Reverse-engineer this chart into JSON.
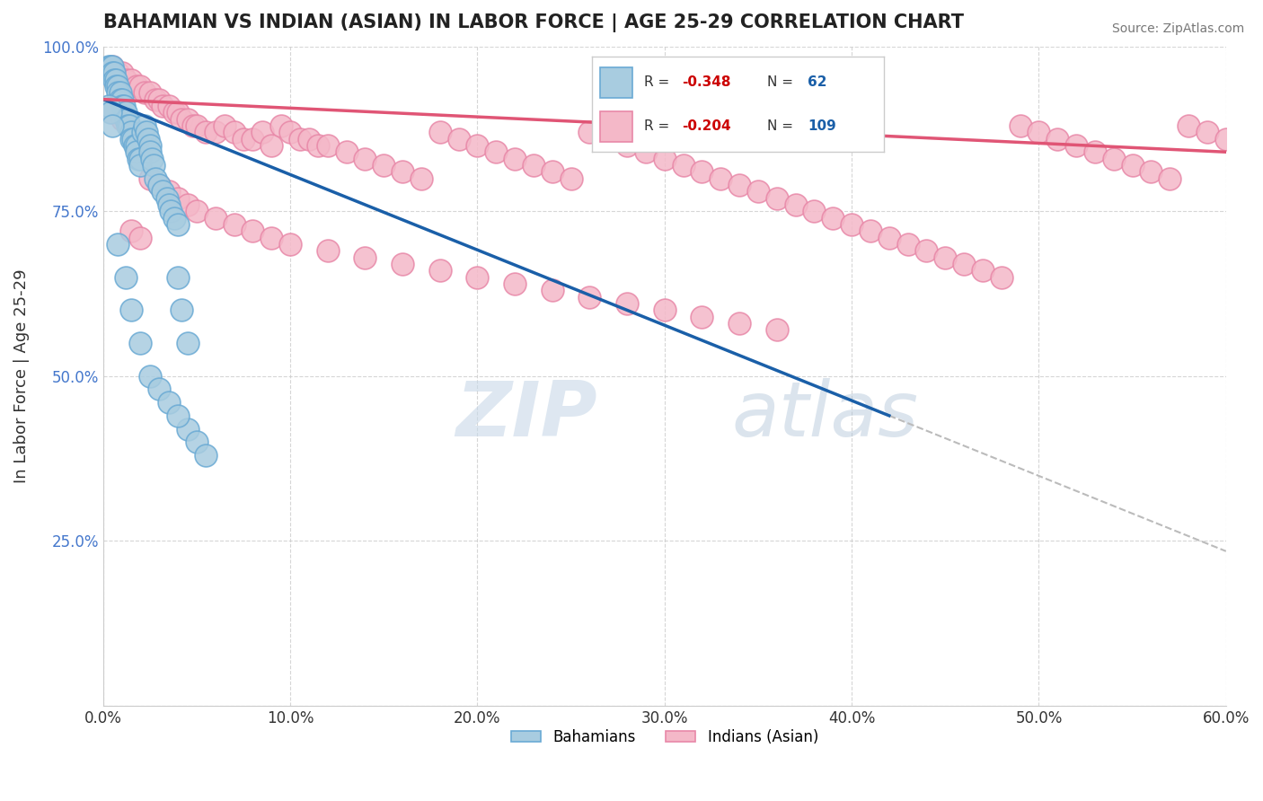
{
  "title": "BAHAMIAN VS INDIAN (ASIAN) IN LABOR FORCE | AGE 25-29 CORRELATION CHART",
  "source": "Source: ZipAtlas.com",
  "xlabel": "",
  "ylabel": "In Labor Force | Age 25-29",
  "xlim": [
    0.0,
    0.6
  ],
  "ylim": [
    0.0,
    1.0
  ],
  "xticks": [
    0.0,
    0.1,
    0.2,
    0.3,
    0.4,
    0.5,
    0.6
  ],
  "xticklabels": [
    "0.0%",
    "10.0%",
    "20.0%",
    "30.0%",
    "40.0%",
    "50.0%",
    "60.0%"
  ],
  "yticks": [
    0.0,
    0.25,
    0.5,
    0.75,
    1.0
  ],
  "yticklabels": [
    "",
    "25.0%",
    "50.0%",
    "75.0%",
    "100.0%"
  ],
  "bahamian_color": "#a8cce0",
  "indian_color": "#f4b8c8",
  "bahamian_edge": "#6aaad4",
  "indian_edge": "#e888a8",
  "trendline_blue": "#1a5fa8",
  "trendline_pink": "#e05575",
  "trendline_dash": "#bbbbbb",
  "R_blue": -0.348,
  "N_blue": 62,
  "R_pink": -0.204,
  "N_pink": 109,
  "watermark_zip": "ZIP",
  "watermark_atlas": "atlas",
  "legend_labels": [
    "Bahamians",
    "Indians (Asian)"
  ],
  "blue_scatter_x": [
    0.003,
    0.004,
    0.005,
    0.005,
    0.006,
    0.006,
    0.007,
    0.007,
    0.008,
    0.008,
    0.009,
    0.009,
    0.01,
    0.01,
    0.011,
    0.012,
    0.012,
    0.013,
    0.013,
    0.014,
    0.015,
    0.015,
    0.016,
    0.017,
    0.018,
    0.018,
    0.019,
    0.02,
    0.02,
    0.021,
    0.022,
    0.023,
    0.024,
    0.025,
    0.025,
    0.026,
    0.027,
    0.028,
    0.03,
    0.032,
    0.034,
    0.035,
    0.036,
    0.038,
    0.04,
    0.04,
    0.042,
    0.045,
    0.045,
    0.05,
    0.055,
    0.003,
    0.004,
    0.005,
    0.008,
    0.012,
    0.015,
    0.02,
    0.025,
    0.03,
    0.035,
    0.04
  ],
  "blue_scatter_y": [
    0.97,
    0.97,
    0.97,
    0.96,
    0.96,
    0.95,
    0.95,
    0.94,
    0.94,
    0.93,
    0.93,
    0.92,
    0.92,
    0.91,
    0.91,
    0.9,
    0.89,
    0.89,
    0.88,
    0.88,
    0.87,
    0.86,
    0.86,
    0.85,
    0.85,
    0.84,
    0.83,
    0.83,
    0.82,
    0.87,
    0.88,
    0.87,
    0.86,
    0.85,
    0.84,
    0.83,
    0.82,
    0.8,
    0.79,
    0.78,
    0.77,
    0.76,
    0.75,
    0.74,
    0.73,
    0.65,
    0.6,
    0.55,
    0.42,
    0.4,
    0.38,
    0.91,
    0.9,
    0.88,
    0.7,
    0.65,
    0.6,
    0.55,
    0.5,
    0.48,
    0.46,
    0.44
  ],
  "pink_scatter_x": [
    0.005,
    0.008,
    0.01,
    0.012,
    0.015,
    0.018,
    0.02,
    0.022,
    0.025,
    0.028,
    0.03,
    0.032,
    0.035,
    0.038,
    0.04,
    0.042,
    0.045,
    0.048,
    0.05,
    0.055,
    0.06,
    0.065,
    0.07,
    0.075,
    0.08,
    0.085,
    0.09,
    0.095,
    0.1,
    0.105,
    0.11,
    0.115,
    0.12,
    0.13,
    0.14,
    0.15,
    0.16,
    0.17,
    0.18,
    0.19,
    0.2,
    0.21,
    0.22,
    0.23,
    0.24,
    0.25,
    0.26,
    0.27,
    0.28,
    0.29,
    0.3,
    0.31,
    0.32,
    0.33,
    0.34,
    0.35,
    0.36,
    0.37,
    0.38,
    0.39,
    0.4,
    0.41,
    0.42,
    0.43,
    0.44,
    0.45,
    0.46,
    0.47,
    0.48,
    0.49,
    0.5,
    0.51,
    0.52,
    0.53,
    0.54,
    0.55,
    0.56,
    0.57,
    0.58,
    0.59,
    0.6,
    0.005,
    0.01,
    0.015,
    0.02,
    0.025,
    0.03,
    0.035,
    0.04,
    0.045,
    0.05,
    0.06,
    0.07,
    0.08,
    0.09,
    0.1,
    0.12,
    0.14,
    0.16,
    0.18,
    0.2,
    0.22,
    0.24,
    0.26,
    0.28,
    0.3,
    0.32,
    0.34,
    0.36
  ],
  "pink_scatter_y": [
    0.97,
    0.96,
    0.96,
    0.95,
    0.95,
    0.94,
    0.94,
    0.93,
    0.93,
    0.92,
    0.92,
    0.91,
    0.91,
    0.9,
    0.9,
    0.89,
    0.89,
    0.88,
    0.88,
    0.87,
    0.87,
    0.88,
    0.87,
    0.86,
    0.86,
    0.87,
    0.85,
    0.88,
    0.87,
    0.86,
    0.86,
    0.85,
    0.85,
    0.84,
    0.83,
    0.82,
    0.81,
    0.8,
    0.87,
    0.86,
    0.85,
    0.84,
    0.83,
    0.82,
    0.81,
    0.8,
    0.87,
    0.86,
    0.85,
    0.84,
    0.83,
    0.82,
    0.81,
    0.8,
    0.79,
    0.78,
    0.77,
    0.76,
    0.75,
    0.74,
    0.73,
    0.72,
    0.71,
    0.7,
    0.69,
    0.68,
    0.67,
    0.66,
    0.65,
    0.88,
    0.87,
    0.86,
    0.85,
    0.84,
    0.83,
    0.82,
    0.81,
    0.8,
    0.88,
    0.87,
    0.86,
    0.9,
    0.89,
    0.72,
    0.71,
    0.8,
    0.79,
    0.78,
    0.77,
    0.76,
    0.75,
    0.74,
    0.73,
    0.72,
    0.71,
    0.7,
    0.69,
    0.68,
    0.67,
    0.66,
    0.65,
    0.64,
    0.63,
    0.62,
    0.61,
    0.6,
    0.59,
    0.58,
    0.57
  ]
}
